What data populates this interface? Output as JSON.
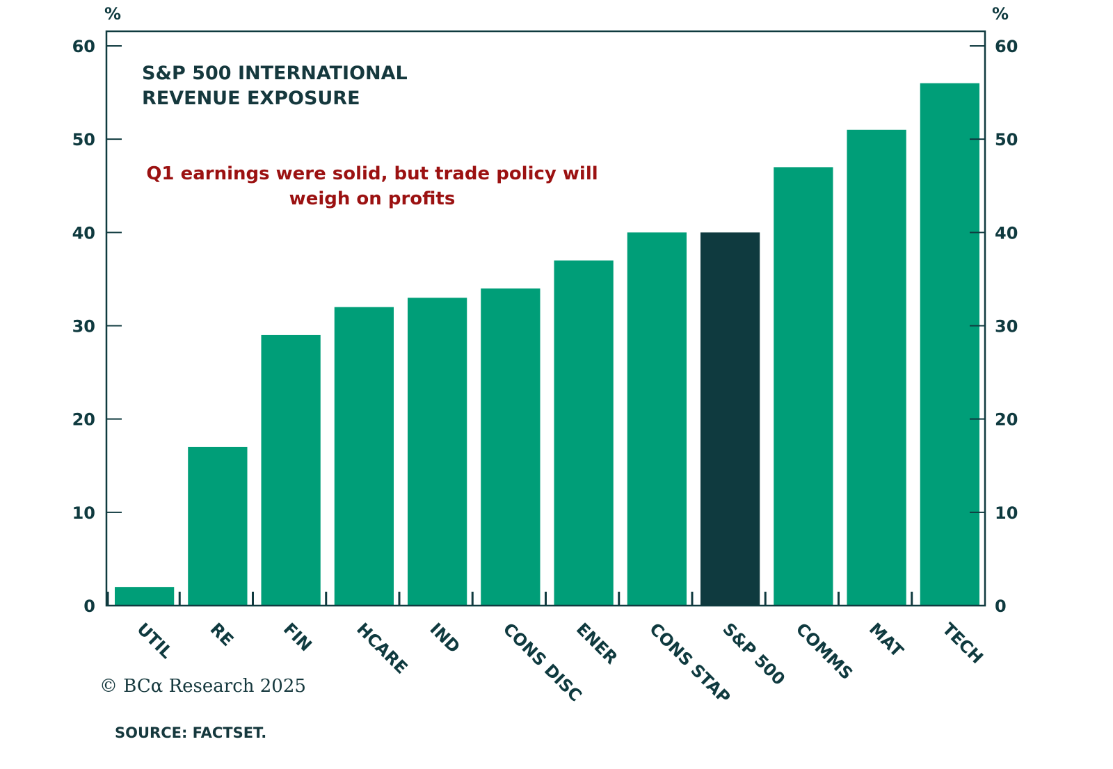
{
  "chart_data": {
    "type": "bar",
    "title": "S&P 500 INTERNATIONAL\nREVENUE EXPOSURE",
    "annotation": "Q1 earnings were solid, but trade policy will\nweigh on profits",
    "categories": [
      "UTIL",
      "RE",
      "FIN",
      "HCARE",
      "IND",
      "CONS DISC",
      "ENER",
      "CONS STAP",
      "S&P 500",
      "COMMS",
      "MAT",
      "TECH"
    ],
    "values": [
      2,
      17,
      29,
      32,
      33,
      34,
      37,
      40,
      40,
      47,
      51,
      56
    ],
    "highlight": "S&P 500",
    "xlabel": "",
    "ylabel_left": "%",
    "ylabel_right": "%",
    "ylim": [
      0,
      60
    ],
    "yticks": [
      0,
      10,
      20,
      30,
      40,
      50,
      60
    ],
    "grid": false,
    "colors": {
      "bar": "#009e78",
      "highlight": "#0f3a3f",
      "axis": "#0f3a3f",
      "annotation": "#9b1111"
    }
  },
  "footer": {
    "copyright": "© BCα Research 2025",
    "source": "SOURCE: FACTSET."
  }
}
